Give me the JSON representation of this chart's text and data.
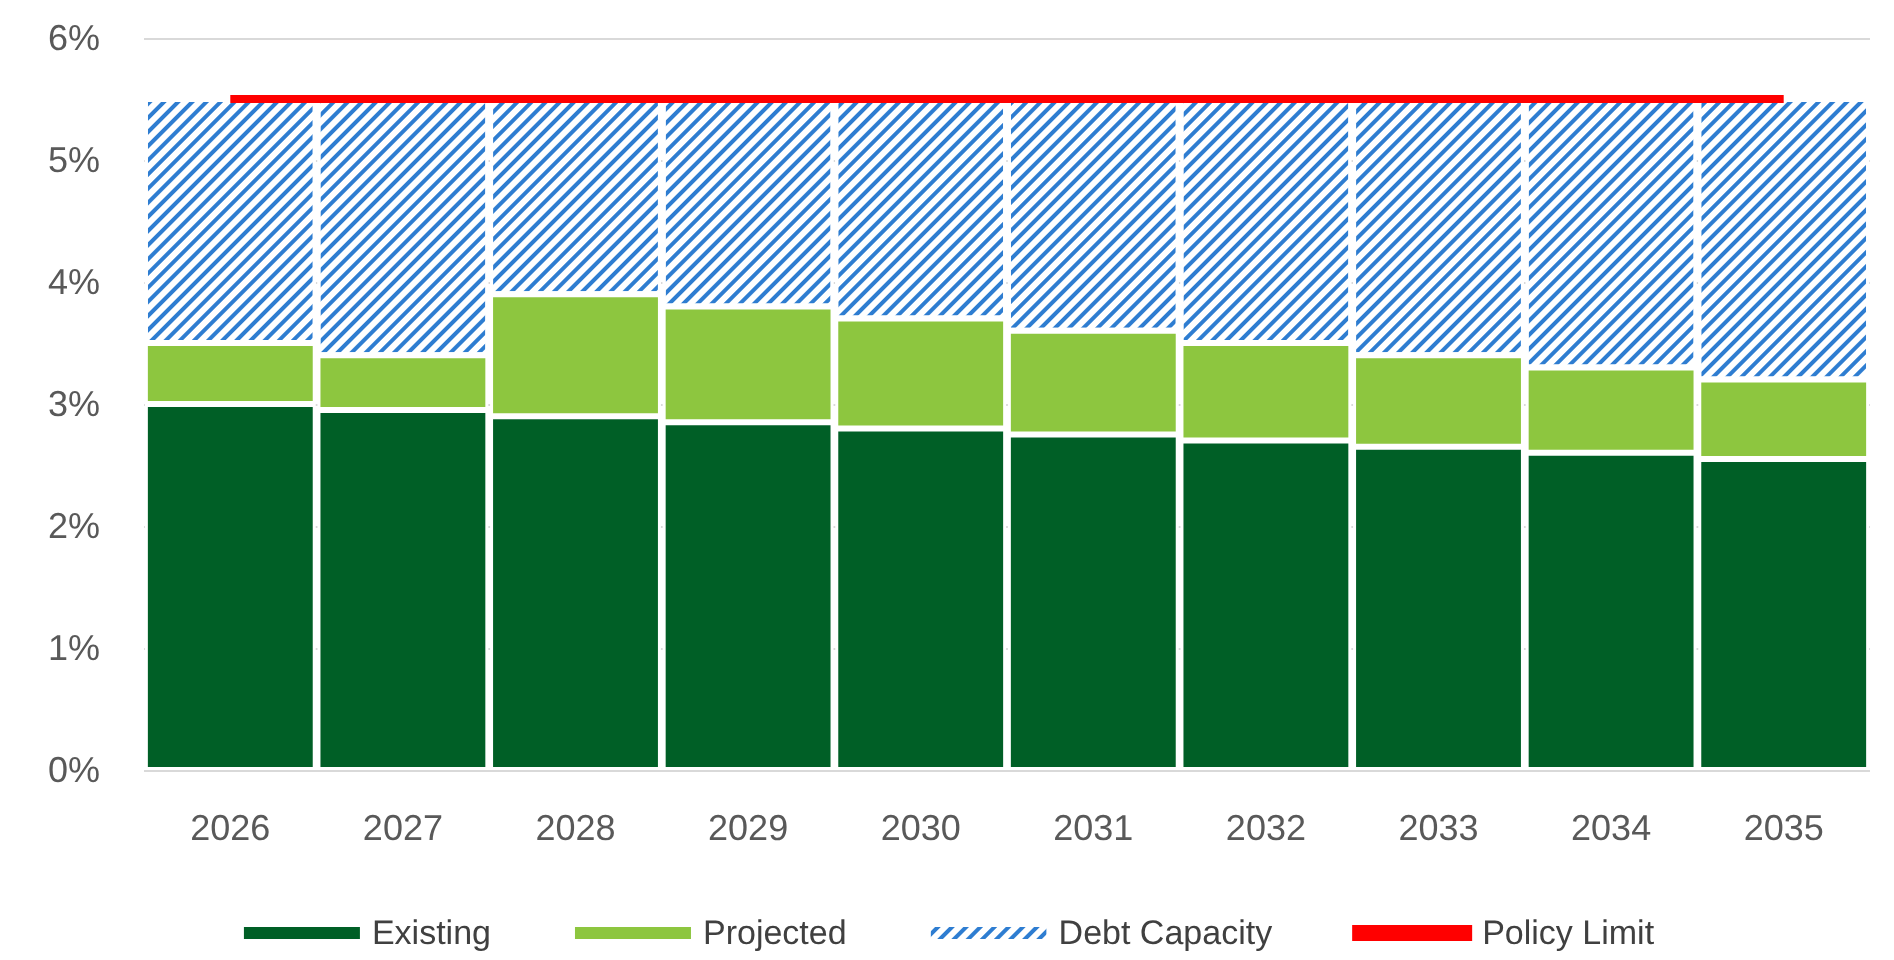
{
  "chart_data": {
    "type": "bar",
    "stacked": true,
    "categories": [
      "2026",
      "2027",
      "2028",
      "2029",
      "2030",
      "2031",
      "2032",
      "2033",
      "2034",
      "2035"
    ],
    "series": [
      {
        "name": "Existing",
        "color": "#005f26",
        "values": [
          3.0,
          2.95,
          2.9,
          2.85,
          2.8,
          2.75,
          2.7,
          2.65,
          2.6,
          2.55
        ]
      },
      {
        "name": "Projected",
        "color": "#8dc63f",
        "values": [
          0.5,
          0.45,
          1.0,
          0.95,
          0.9,
          0.85,
          0.8,
          0.75,
          0.7,
          0.65
        ]
      },
      {
        "name": "Debt Capacity",
        "color": "#2e7dd1",
        "values": [
          2.0,
          2.1,
          1.6,
          1.7,
          1.8,
          1.9,
          2.0,
          2.1,
          2.2,
          2.3
        ]
      },
      {
        "name": "Policy Limit",
        "type": "line",
        "color": "#ff0000",
        "values": [
          5.5,
          5.5,
          5.5,
          5.5,
          5.5,
          5.5,
          5.5,
          5.5,
          5.5,
          5.5
        ]
      }
    ],
    "ylim": [
      0,
      6
    ],
    "yticks": [
      {
        "value": 0,
        "label": "0%"
      },
      {
        "value": 1,
        "label": "1%"
      },
      {
        "value": 2,
        "label": "2%"
      },
      {
        "value": 3,
        "label": "3%"
      },
      {
        "value": 4,
        "label": "4%"
      },
      {
        "value": 5,
        "label": "5%"
      },
      {
        "value": 6,
        "label": "6%"
      }
    ],
    "grid": "y",
    "legend": "bottom",
    "marker": "none"
  }
}
